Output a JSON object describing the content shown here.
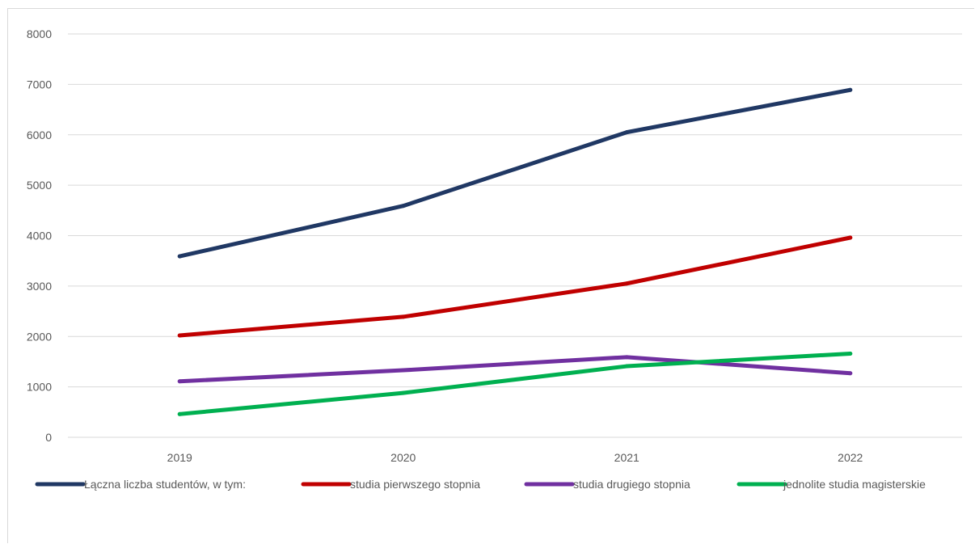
{
  "chart_data": {
    "type": "line",
    "categories": [
      "2019",
      "2020",
      "2021",
      "2022"
    ],
    "ylim": [
      0,
      8000
    ],
    "yticks": [
      0,
      1000,
      2000,
      3000,
      4000,
      5000,
      6000,
      7000,
      8000
    ],
    "grid": true,
    "legend_position": "bottom",
    "series": [
      {
        "name": "Łączna liczba studentów, w tym:",
        "color": "#203864",
        "values": [
          3590,
          4590,
          6050,
          6890
        ]
      },
      {
        "name": "studia pierwszego stopnia",
        "color": "#c00000",
        "values": [
          2020,
          2390,
          3050,
          3960
        ]
      },
      {
        "name": "studia drugiego stopnia",
        "color": "#7030a0",
        "values": [
          1110,
          1330,
          1590,
          1270
        ]
      },
      {
        "name": "jednolite studia magisterskie",
        "color": "#00b050",
        "values": [
          460,
          880,
          1410,
          1660
        ]
      }
    ]
  }
}
